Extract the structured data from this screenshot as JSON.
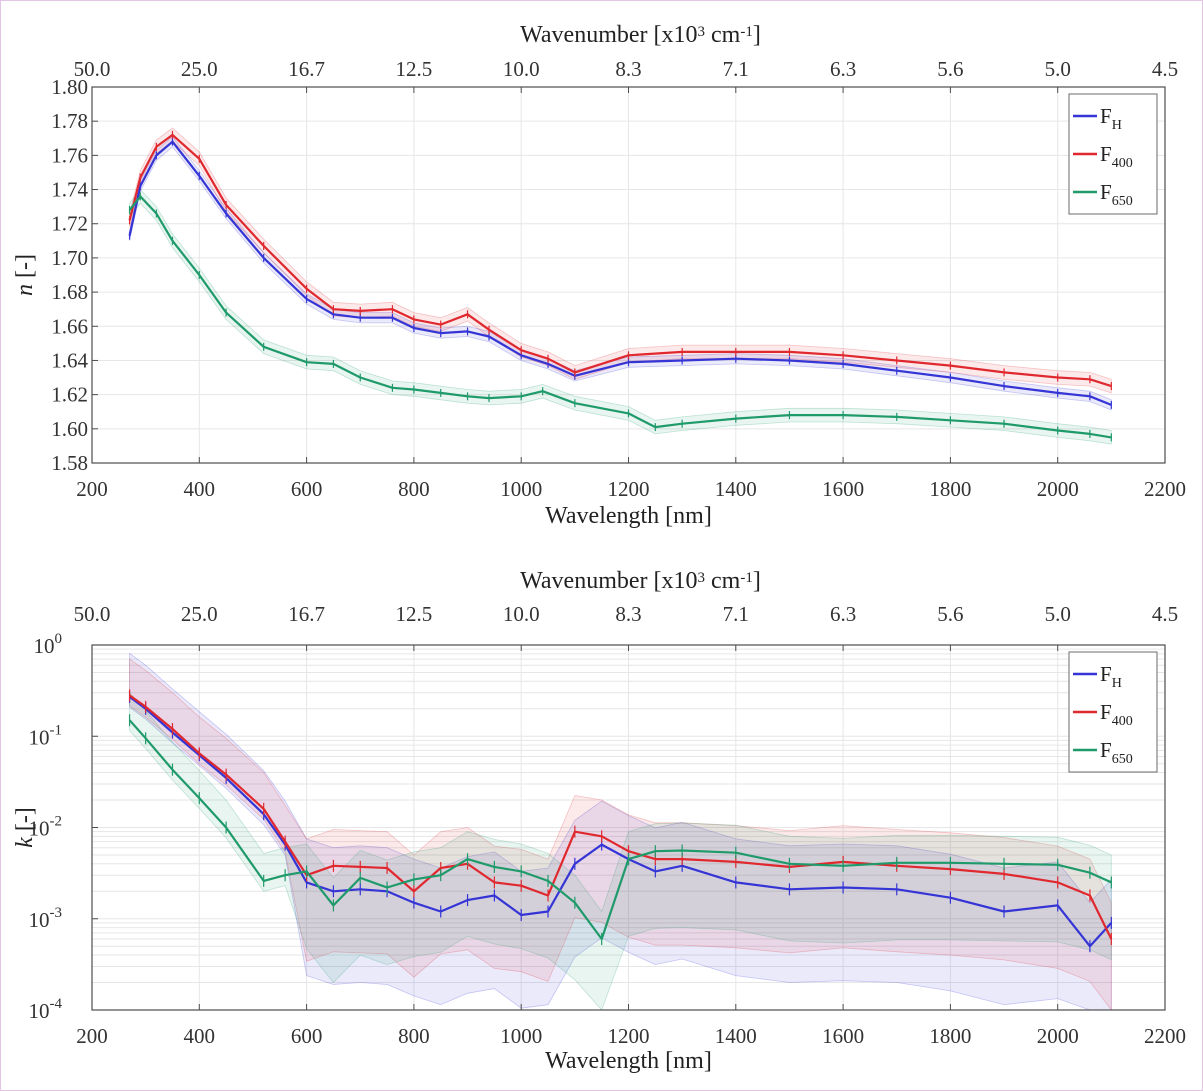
{
  "colors": {
    "F_H": "#3535d6",
    "F_400": "#e0282f",
    "F_650": "#1f9a6a"
  },
  "chart_data": [
    {
      "type": "line",
      "xlabel": "Wavelength [nm]",
      "ylabel_main": "n",
      "ylabel_unit": " [-]",
      "top_axis_label": {
        "main": "Wavenumber [x10",
        "sup": "3",
        "mid": " cm",
        "sup2": "-1",
        "end": "]"
      },
      "top_ticks": [
        "50.0",
        "25.0",
        "16.7",
        "12.5",
        "10.0",
        "8.3",
        "7.1",
        "6.3",
        "5.6",
        "5.0",
        "4.5"
      ],
      "xlim": [
        200,
        2200
      ],
      "ylim": [
        1.58,
        1.8
      ],
      "x_ticks": [
        200,
        400,
        600,
        800,
        1000,
        1200,
        1400,
        1600,
        1800,
        2000,
        2200
      ],
      "y_ticks": [
        "1.58",
        "1.60",
        "1.62",
        "1.64",
        "1.66",
        "1.68",
        "1.70",
        "1.72",
        "1.74",
        "1.76",
        "1.78",
        "1.80"
      ],
      "legend": "top-right",
      "grid": true,
      "series": [
        {
          "key": "F_H",
          "name": "F",
          "sub": "H",
          "x": [
            270,
            290,
            320,
            350,
            400,
            450,
            520,
            600,
            650,
            700,
            760,
            800,
            850,
            900,
            940,
            1000,
            1050,
            1100,
            1200,
            1300,
            1400,
            1500,
            1600,
            1700,
            1800,
            1900,
            2000,
            2060,
            2100
          ],
          "y": [
            1.713,
            1.742,
            1.76,
            1.768,
            1.748,
            1.726,
            1.7,
            1.676,
            1.667,
            1.665,
            1.665,
            1.659,
            1.656,
            1.657,
            1.654,
            1.643,
            1.638,
            1.631,
            1.639,
            1.64,
            1.641,
            1.64,
            1.638,
            1.634,
            1.63,
            1.625,
            1.621,
            1.619,
            1.614
          ],
          "band": 0.003
        },
        {
          "key": "F_400",
          "name": "F",
          "sub": "400",
          "x": [
            270,
            290,
            320,
            350,
            400,
            450,
            520,
            600,
            650,
            700,
            760,
            800,
            850,
            900,
            940,
            1000,
            1050,
            1100,
            1200,
            1300,
            1400,
            1500,
            1600,
            1700,
            1800,
            1900,
            2000,
            2060,
            2100
          ],
          "y": [
            1.722,
            1.747,
            1.765,
            1.772,
            1.758,
            1.731,
            1.707,
            1.682,
            1.67,
            1.669,
            1.67,
            1.664,
            1.661,
            1.667,
            1.658,
            1.646,
            1.641,
            1.633,
            1.643,
            1.645,
            1.645,
            1.645,
            1.643,
            1.64,
            1.637,
            1.633,
            1.63,
            1.629,
            1.625
          ],
          "band": 0.004
        },
        {
          "key": "F_650",
          "name": "F",
          "sub": "650",
          "x": [
            270,
            290,
            320,
            350,
            400,
            450,
            520,
            600,
            650,
            700,
            760,
            800,
            850,
            900,
            940,
            1000,
            1040,
            1100,
            1200,
            1250,
            1300,
            1400,
            1500,
            1600,
            1700,
            1800,
            1900,
            2000,
            2060,
            2100
          ],
          "y": [
            1.728,
            1.736,
            1.726,
            1.71,
            1.69,
            1.668,
            1.648,
            1.639,
            1.638,
            1.63,
            1.624,
            1.623,
            1.621,
            1.619,
            1.618,
            1.619,
            1.622,
            1.615,
            1.609,
            1.601,
            1.603,
            1.606,
            1.608,
            1.608,
            1.607,
            1.605,
            1.603,
            1.599,
            1.597,
            1.595
          ],
          "band": 0.004
        }
      ]
    },
    {
      "type": "line",
      "xlabel": "Wavelength [nm]",
      "ylabel_main": "k",
      "ylabel_unit": " [-]",
      "top_axis_label": {
        "main": "Wavenumber [x10",
        "sup": "3",
        "mid": " cm",
        "sup2": "-1",
        "end": "]"
      },
      "top_ticks": [
        "50.0",
        "25.0",
        "16.7",
        "12.5",
        "10.0",
        "8.3",
        "7.1",
        "6.3",
        "5.6",
        "5.0",
        "4.5"
      ],
      "xlim": [
        200,
        2200
      ],
      "ylim": [
        0.0001,
        1
      ],
      "yscale": "log",
      "x_ticks": [
        200,
        400,
        600,
        800,
        1000,
        1200,
        1400,
        1600,
        1800,
        2000,
        2200
      ],
      "y_ticks": [
        {
          "base": "10",
          "exp": "-4"
        },
        {
          "base": "10",
          "exp": "-3"
        },
        {
          "base": "10",
          "exp": "-2"
        },
        {
          "base": "10",
          "exp": "-1"
        },
        {
          "base": "10",
          "exp": "0"
        }
      ],
      "legend": "top-right",
      "grid": true,
      "series": [
        {
          "key": "F_H",
          "name": "F",
          "sub": "H",
          "x": [
            270,
            300,
            350,
            400,
            450,
            520,
            560,
            600,
            650,
            700,
            750,
            800,
            850,
            900,
            950,
            1000,
            1050,
            1100,
            1150,
            1200,
            1250,
            1300,
            1400,
            1500,
            1600,
            1700,
            1800,
            1900,
            2000,
            2060,
            2100
          ],
          "y": [
            0.27,
            0.2,
            0.11,
            0.062,
            0.035,
            0.014,
            0.0065,
            0.0025,
            0.002,
            0.0021,
            0.002,
            0.0015,
            0.0012,
            0.0016,
            0.0018,
            0.0011,
            0.0012,
            0.004,
            0.0065,
            0.0045,
            0.0033,
            0.0038,
            0.0025,
            0.0021,
            0.0022,
            0.0021,
            0.0017,
            0.0012,
            0.0014,
            0.0005,
            0.0009
          ]
        },
        {
          "key": "F_400",
          "name": "F",
          "sub": "400",
          "x": [
            270,
            300,
            350,
            400,
            450,
            520,
            560,
            600,
            650,
            700,
            750,
            800,
            850,
            900,
            950,
            1000,
            1050,
            1100,
            1150,
            1200,
            1250,
            1300,
            1400,
            1500,
            1600,
            1700,
            1800,
            1900,
            2000,
            2060,
            2100
          ],
          "y": [
            0.28,
            0.21,
            0.12,
            0.065,
            0.038,
            0.016,
            0.007,
            0.003,
            0.0038,
            0.0037,
            0.0036,
            0.002,
            0.0036,
            0.004,
            0.0025,
            0.0023,
            0.0018,
            0.009,
            0.008,
            0.0055,
            0.0045,
            0.0045,
            0.0042,
            0.0037,
            0.0042,
            0.0038,
            0.0035,
            0.0031,
            0.0025,
            0.0018,
            0.0006
          ]
        },
        {
          "key": "F_650",
          "name": "F",
          "sub": "650",
          "x": [
            270,
            300,
            350,
            400,
            450,
            520,
            560,
            600,
            650,
            700,
            750,
            800,
            850,
            900,
            950,
            1000,
            1050,
            1100,
            1150,
            1200,
            1250,
            1300,
            1400,
            1500,
            1600,
            1700,
            1800,
            1900,
            2000,
            2060,
            2100
          ],
          "y": [
            0.15,
            0.095,
            0.043,
            0.021,
            0.01,
            0.0026,
            0.003,
            0.0033,
            0.0014,
            0.0028,
            0.0022,
            0.0027,
            0.003,
            0.0045,
            0.0037,
            0.0033,
            0.0026,
            0.0015,
            0.0006,
            0.0045,
            0.0055,
            0.0056,
            0.0053,
            0.004,
            0.0038,
            0.0041,
            0.0041,
            0.004,
            0.0039,
            0.0032,
            0.0025
          ]
        }
      ]
    }
  ]
}
